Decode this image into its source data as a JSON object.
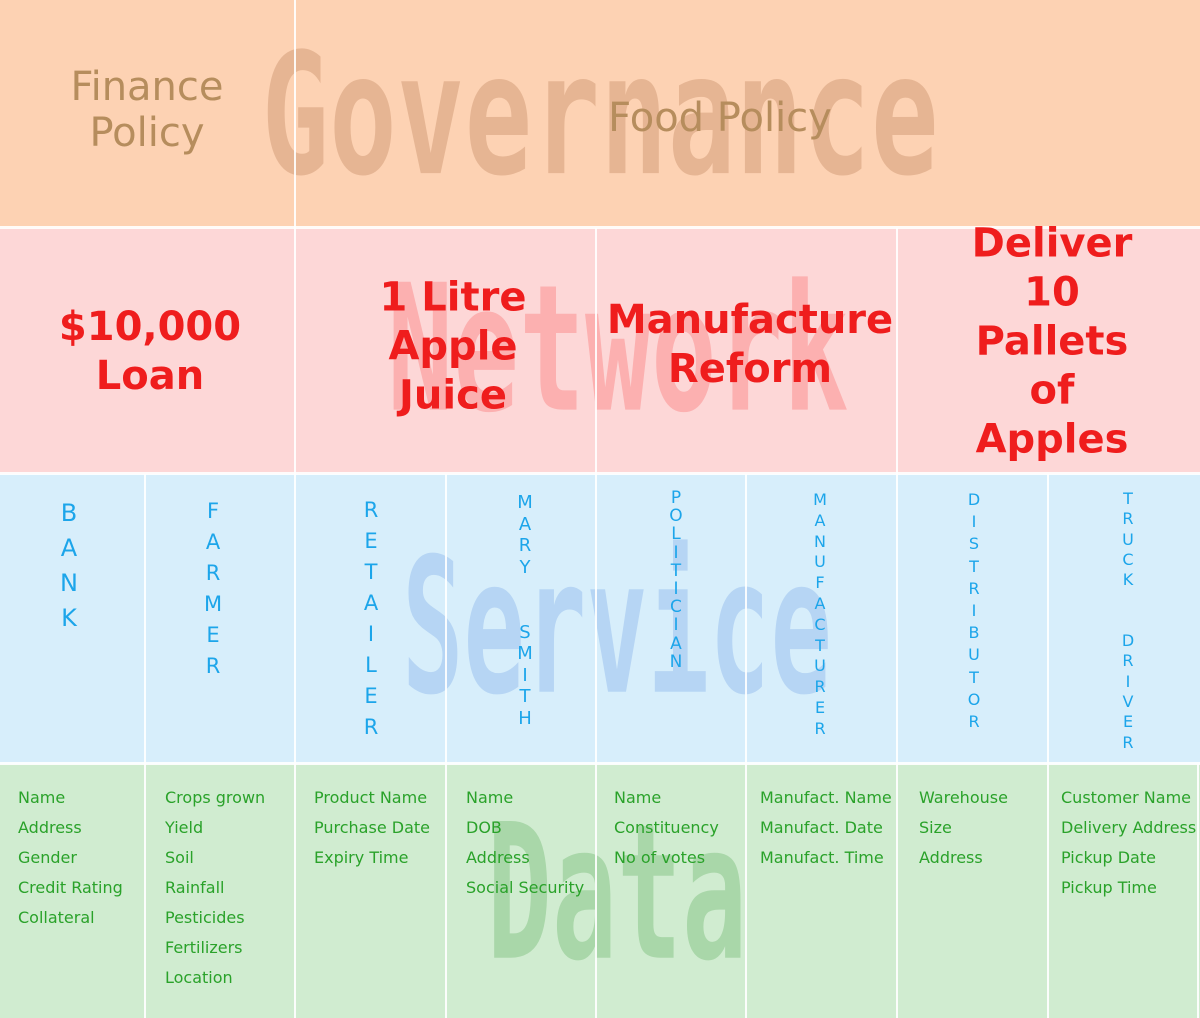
{
  "layers": {
    "governance": "Governance",
    "network": "Network",
    "service": "Service",
    "data": "Data"
  },
  "governance": {
    "items": [
      "Finance\nPolicy",
      "Food Policy"
    ]
  },
  "network": {
    "items": [
      "$10,000\nLoan",
      "1 Litre\nApple\nJuice",
      "Manufacture\nReform",
      "Deliver\n10 Pallets\nof Apples"
    ]
  },
  "service": {
    "actors": [
      "BANK",
      "FARMER",
      "RETAILER",
      "MARY  SMITH",
      "POLITICIAN",
      "MANUFACTURER",
      "DISTRIBUTOR",
      "TRUCK  DRIVER"
    ]
  },
  "data": {
    "columns": [
      [
        "Name",
        "Address",
        "Gender",
        "Credit Rating",
        "Collateral"
      ],
      [
        "Crops grown",
        "Yield",
        "Soil",
        "Rainfall",
        "Pesticides",
        "Fertilizers",
        "Location"
      ],
      [
        "Product Name",
        "Purchase Date",
        "Expiry Time"
      ],
      [
        "Name",
        "DOB",
        "Address",
        "Social Security"
      ],
      [
        "Name",
        "Constituency",
        "No of votes"
      ],
      [
        "Manufact. Name",
        "Manufact. Date",
        "Manufact. Time"
      ],
      [
        "Warehouse",
        "Size",
        "Address"
      ],
      [
        "Customer Name",
        "Delivery Address",
        "Pickup Date",
        "Pickup Time"
      ]
    ]
  },
  "colors": {
    "governance_bg": "#fdd2b3",
    "network_bg": "#fdd7d7",
    "service_bg": "#d7eefb",
    "data_bg": "#d0ecd0",
    "governance_text": "#b68d5d",
    "network_text": "#ef1d1d",
    "service_text": "#1ca5ea",
    "data_text": "#2aa22a"
  }
}
